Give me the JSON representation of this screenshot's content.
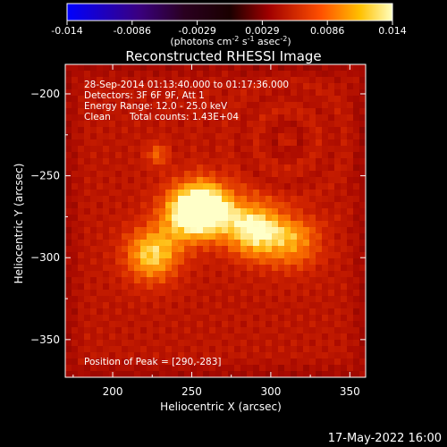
{
  "chart_data": {
    "type": "heatmap",
    "title": "Reconstructed RHESSI Image",
    "xlabel": "Heliocentric X (arcsec)",
    "ylabel": "Heliocentric Y (arcsec)",
    "xlim": [
      170,
      360
    ],
    "ylim": [
      -373,
      -182
    ],
    "xticks": [
      200,
      250,
      300,
      350
    ],
    "yticks": [
      -200,
      -250,
      -300,
      -350
    ],
    "colorbar": {
      "range": [
        -0.014,
        0.014
      ],
      "ticks": [
        "-0.014",
        "-0.0086",
        "-0.0029",
        "0.0029",
        "0.0086",
        "0.014"
      ],
      "label": "(photons cm",
      "label_sup1": "-2",
      "label_mid1": " s",
      "label_sup2": "-1",
      "label_mid2": " asec",
      "label_sup3": "-2",
      "label_end": ")"
    },
    "annotations": {
      "time": "28-Sep-2014 01:13:40.000 to 01:17:36.000",
      "detectors": "Detectors: 3F 6F 9F, Att 1",
      "energy": "Energy Range: 12.0 - 25.0 keV",
      "method": "Clean",
      "counts": "Total counts: 1.43E+04",
      "peak": "Position of Peak = [290,-283]"
    },
    "sources": [
      {
        "x": 225,
        "y": -298,
        "peak": 0.85
      },
      {
        "x": 248,
        "y": -272,
        "peak": 0.95
      },
      {
        "x": 262,
        "y": -270,
        "peak": 0.9
      },
      {
        "x": 290,
        "y": -283,
        "peak": 1.0
      },
      {
        "x": 315,
        "y": -290,
        "peak": 0.6
      },
      {
        "x": 228,
        "y": -237,
        "peak": 0.45
      }
    ],
    "footer_date": "17-May-2022 16:00"
  }
}
